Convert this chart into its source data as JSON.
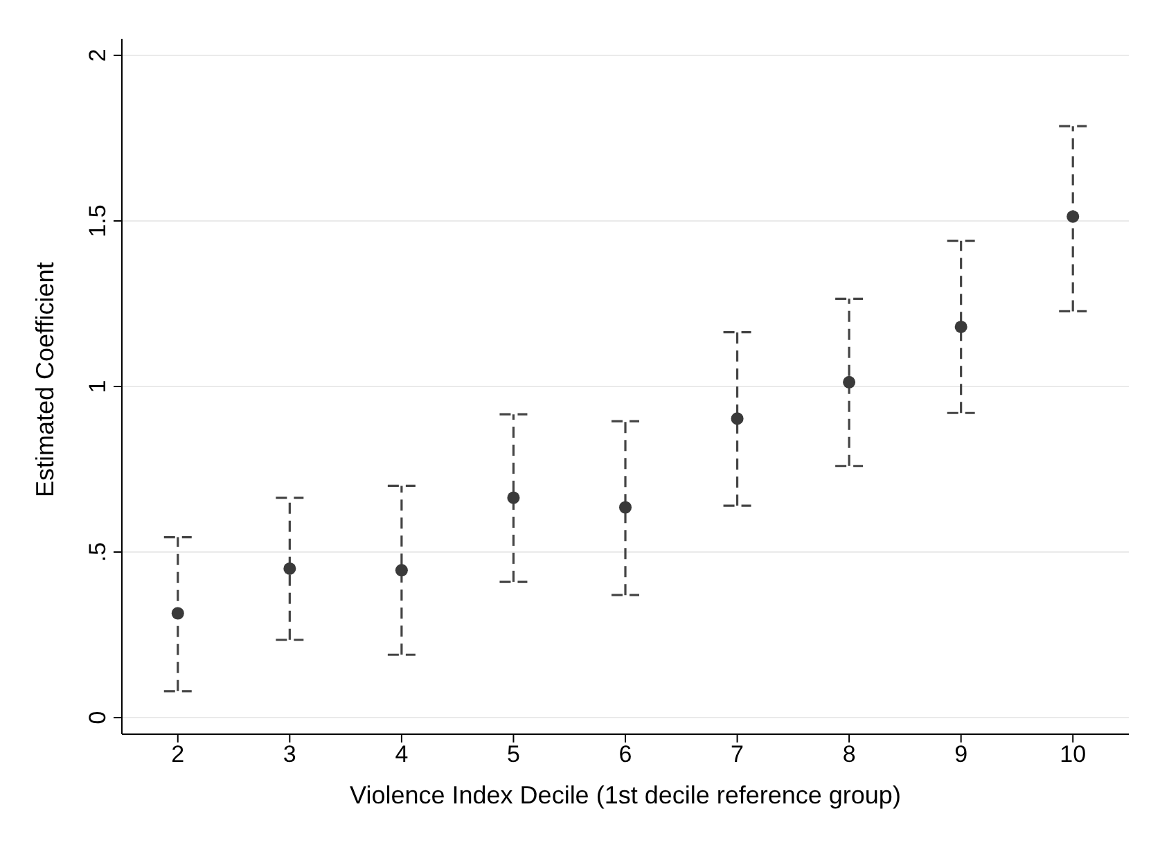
{
  "chart_data": {
    "type": "scatter",
    "xlabel": "Violence Index Decile (1st decile reference group)",
    "ylabel": "Estimated Coefficient",
    "x": [
      2,
      3,
      4,
      5,
      6,
      7,
      8,
      9,
      10
    ],
    "values": [
      0.315,
      0.45,
      0.445,
      0.664,
      0.635,
      0.903,
      1.013,
      1.18,
      1.513
    ],
    "errors": [
      [
        0.08,
        0.545
      ],
      [
        0.235,
        0.664
      ],
      [
        0.19,
        0.7
      ],
      [
        0.41,
        0.916
      ],
      [
        0.37,
        0.895
      ],
      [
        0.64,
        1.164
      ],
      [
        0.76,
        1.265
      ],
      [
        0.92,
        1.44
      ],
      [
        1.227,
        1.786
      ]
    ],
    "color": "#3a3a3a",
    "marker": "circle",
    "line_style": "dashed",
    "grid": "y",
    "xlim": [
      1.5,
      10.5
    ],
    "xticks": [
      2,
      3,
      4,
      5,
      6,
      7,
      8,
      9,
      10
    ],
    "ylim": [
      -0.05,
      2.05
    ],
    "yticks": [
      0,
      {
        "value": 0.5,
        "label": ".5"
      },
      1,
      1.5,
      2
    ]
  }
}
